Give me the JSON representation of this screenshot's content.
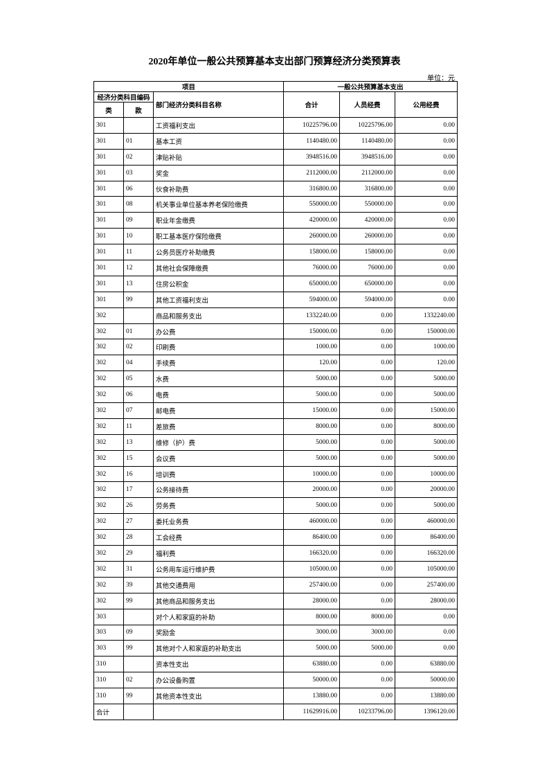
{
  "header": {
    "title": "2020年单位一般公共预算基本支出部门预算经济分类预算表",
    "unit": "单位：元"
  },
  "table": {
    "columns": {
      "item": "项目",
      "budget": "一般公共预算基本支出",
      "code": "经济分类科目编码",
      "lei": "类",
      "kuan": "款",
      "name": "部门经济分类科目名称",
      "total": "合计",
      "personnel": "人员经费",
      "public": "公用经费"
    },
    "rows": [
      [
        "301",
        null,
        "工资福利支出",
        "10225796.00",
        "10225796.00",
        "0.00"
      ],
      [
        "301",
        "01",
        "基本工资",
        "1140480.00",
        "1140480.00",
        "0.00"
      ],
      [
        "301",
        "02",
        "津贴补贴",
        "3948516.00",
        "3948516.00",
        "0.00"
      ],
      [
        "301",
        "03",
        "奖金",
        "2112000.00",
        "2112000.00",
        "0.00"
      ],
      [
        "301",
        "06",
        "伙食补助费",
        "316800.00",
        "316800.00",
        "0.00"
      ],
      [
        "301",
        "08",
        "机关事业单位基本养老保险缴费",
        "550000.00",
        "550000.00",
        "0.00"
      ],
      [
        "301",
        "09",
        "职业年金缴费",
        "420000.00",
        "420000.00",
        "0.00"
      ],
      [
        "301",
        "10",
        "职工基本医疗保险缴费",
        "260000.00",
        "260000.00",
        "0.00"
      ],
      [
        "301",
        "11",
        "公务员医疗补助缴费",
        "158000.00",
        "158000.00",
        "0.00"
      ],
      [
        "301",
        "12",
        "其他社会保障缴费",
        "76000.00",
        "76000.00",
        "0.00"
      ],
      [
        "301",
        "13",
        "住房公积金",
        "650000.00",
        "650000.00",
        "0.00"
      ],
      [
        "301",
        "99",
        "其他工资福利支出",
        "594000.00",
        "594000.00",
        "0.00"
      ],
      [
        "302",
        null,
        "商品和服务支出",
        "1332240.00",
        "0.00",
        "1332240.00"
      ],
      [
        "302",
        "01",
        "办公费",
        "150000.00",
        "0.00",
        "150000.00"
      ],
      [
        "302",
        "02",
        "印刷费",
        "1000.00",
        "0.00",
        "1000.00"
      ],
      [
        "302",
        "04",
        "手续费",
        "120.00",
        "0.00",
        "120.00"
      ],
      [
        "302",
        "05",
        "水费",
        "5000.00",
        "0.00",
        "5000.00"
      ],
      [
        "302",
        "06",
        "电费",
        "5000.00",
        "0.00",
        "5000.00"
      ],
      [
        "302",
        "07",
        "邮电费",
        "15000.00",
        "0.00",
        "15000.00"
      ],
      [
        "302",
        "11",
        "差旅费",
        "8000.00",
        "0.00",
        "8000.00"
      ],
      [
        "302",
        "13",
        "维修（护）费",
        "5000.00",
        "0.00",
        "5000.00"
      ],
      [
        "302",
        "15",
        "会议费",
        "5000.00",
        "0.00",
        "5000.00"
      ],
      [
        "302",
        "16",
        "培训费",
        "10000.00",
        "0.00",
        "10000.00"
      ],
      [
        "302",
        "17",
        "公务接待费",
        "20000.00",
        "0.00",
        "20000.00"
      ],
      [
        "302",
        "26",
        "劳务费",
        "5000.00",
        "0.00",
        "5000.00"
      ],
      [
        "302",
        "27",
        "委托业务费",
        "460000.00",
        "0.00",
        "460000.00"
      ],
      [
        "302",
        "28",
        "工会经费",
        "86400.00",
        "0.00",
        "86400.00"
      ],
      [
        "302",
        "29",
        "福利费",
        "166320.00",
        "0.00",
        "166320.00"
      ],
      [
        "302",
        "31",
        "公务用车运行维护费",
        "105000.00",
        "0.00",
        "105000.00"
      ],
      [
        "302",
        "39",
        "其他交通费用",
        "257400.00",
        "0.00",
        "257400.00"
      ],
      [
        "302",
        "99",
        "其他商品和服务支出",
        "28000.00",
        "0.00",
        "28000.00"
      ],
      [
        "303",
        null,
        "对个人和家庭的补助",
        "8000.00",
        "8000.00",
        "0.00"
      ],
      [
        "303",
        "09",
        "奖励金",
        "3000.00",
        "3000.00",
        "0.00"
      ],
      [
        "303",
        "99",
        "其他对个人和家庭的补助支出",
        "5000.00",
        "5000.00",
        "0.00"
      ],
      [
        "310",
        null,
        "资本性支出",
        "63880.00",
        "0.00",
        "63880.00"
      ],
      [
        "310",
        "02",
        "办公设备购置",
        "50000.00",
        "0.00",
        "50000.00"
      ],
      [
        "310",
        "99",
        "其他资本性支出",
        "13880.00",
        "0.00",
        "13880.00"
      ],
      [
        "合计",
        null,
        null,
        "11629916.00",
        "10233796.00",
        "1396120.00"
      ]
    ]
  }
}
